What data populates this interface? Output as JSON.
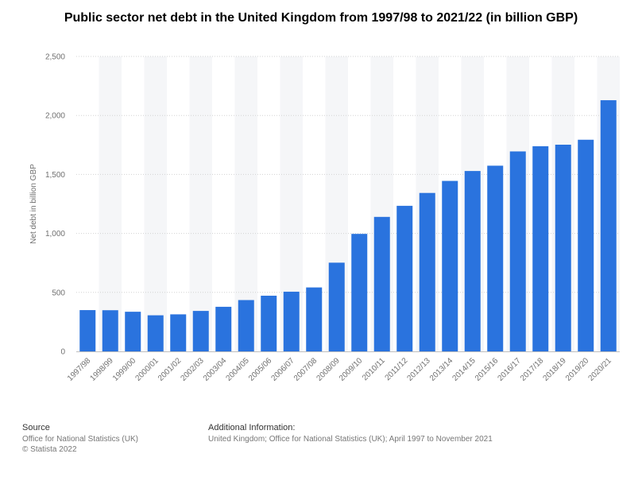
{
  "colors": {
    "bar": "#2a73de",
    "band": "#f5f6f8",
    "grid": "#d3d3d3",
    "axis_text": "#707070"
  },
  "chart_data": {
    "type": "bar",
    "title": "Public sector net debt in the United Kingdom from 1997/98 to 2021/22 (in billion GBP)",
    "xlabel": "",
    "ylabel": "Net debt in billion GBP",
    "ylim": [
      0,
      2500
    ],
    "yticks": [
      0,
      500,
      1000,
      1500,
      2000,
      2500
    ],
    "ytick_labels": [
      "0",
      "500",
      "1,000",
      "1,500",
      "2,000",
      "2,500"
    ],
    "grid": true,
    "legend": "none",
    "categories": [
      "1997/98",
      "1998/99",
      "1999/00",
      "2000/01",
      "2001/02",
      "2002/03",
      "2003/04",
      "2004/05",
      "2005/06",
      "2006/07",
      "2007/08",
      "2008/09",
      "2009/10",
      "2010/11",
      "2011/12",
      "2012/13",
      "2013/14",
      "2014/15",
      "2015/16",
      "2016/17",
      "2017/18",
      "2018/19",
      "2019/20",
      "2020/21"
    ],
    "values": [
      350,
      349,
      336,
      306,
      314,
      343,
      378,
      435,
      472,
      506,
      542,
      752,
      996,
      1140,
      1234,
      1343,
      1445,
      1529,
      1574,
      1695,
      1739,
      1752,
      1794,
      2129
    ]
  },
  "footer": {
    "source_heading": "Source",
    "source_lines": [
      "Office for National Statistics (UK)",
      "© Statista 2022"
    ],
    "additional_heading": "Additional Information:",
    "additional_text": "United Kingdom; Office for National Statistics (UK); April 1997 to November 2021"
  }
}
